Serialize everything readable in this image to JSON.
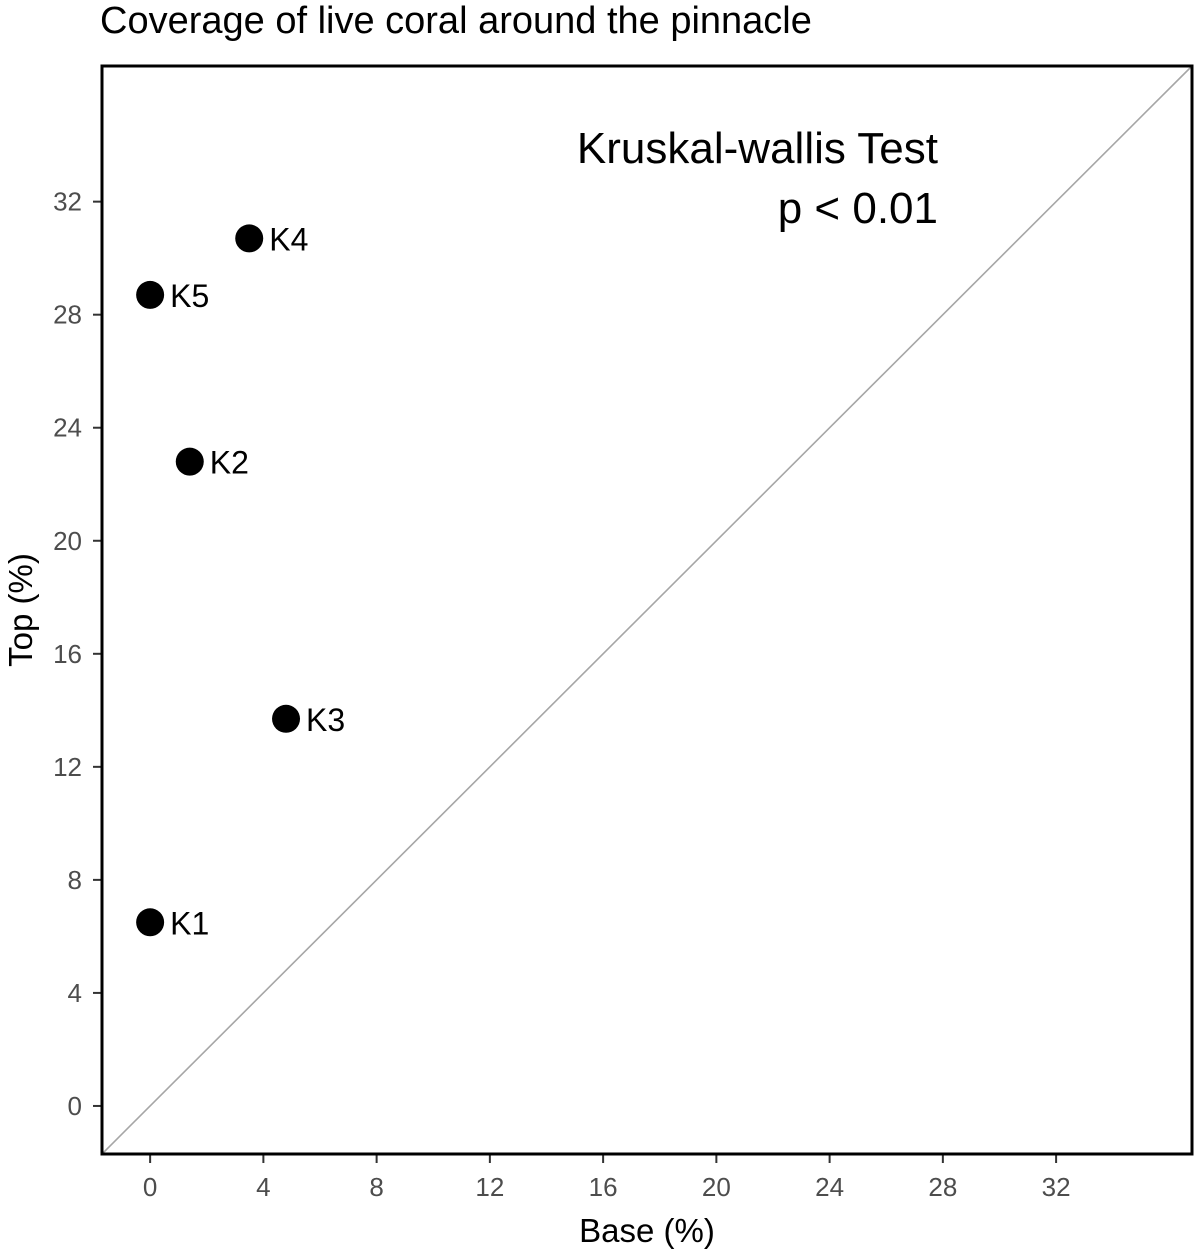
{
  "chart_data": {
    "type": "scatter",
    "title": "Coverage of live coral around the pinnacle",
    "xlabel": "Base (%)",
    "ylabel": "Top (%)",
    "xlim": [
      -1.7,
      36.8
    ],
    "ylim": [
      -1.7,
      36.8
    ],
    "xticks": [
      0,
      4,
      8,
      12,
      16,
      20,
      24,
      28,
      32
    ],
    "yticks": [
      0,
      4,
      8,
      12,
      16,
      20,
      24,
      28,
      32
    ],
    "reference_line": "y = x",
    "grid": false,
    "points": [
      {
        "label": "K1",
        "x": 0.0,
        "y": 6.5
      },
      {
        "label": "K2",
        "x": 1.4,
        "y": 22.8
      },
      {
        "label": "K3",
        "x": 4.8,
        "y": 13.7
      },
      {
        "label": "K4",
        "x": 3.5,
        "y": 30.7
      },
      {
        "label": "K5",
        "x": 0.0,
        "y": 28.7
      }
    ],
    "annotation": [
      "Kruskal-wallis Test",
      "p < 0.01"
    ],
    "colors": {
      "points": "#000000",
      "reference_line": "#a6a6a6",
      "frame": "#000000",
      "tick_labels": "#4d4d4d"
    }
  }
}
